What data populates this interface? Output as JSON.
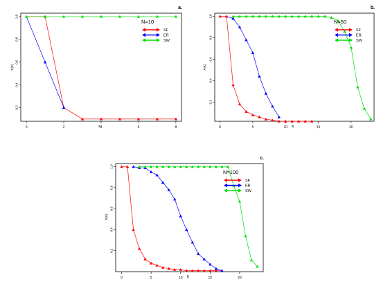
{
  "colors": {
    "SF": "#ff0000",
    "ER": "#0000ff",
    "SW": "#00dd00"
  },
  "chart_data": [
    {
      "type": "line",
      "panel_label": "a.",
      "annotation": "N=10",
      "xlabel": "K",
      "ylabel": "P(K)",
      "xlim": [
        -0.3,
        8.3
      ],
      "ylim": [
        0.08,
        1.03
      ],
      "xticks": [
        0,
        2,
        4,
        6,
        8
      ],
      "yticks": [
        0.2,
        0.4,
        0.6,
        0.8,
        1.0
      ],
      "ytick_labels": [
        "0.2",
        "0.4",
        "0.6",
        "0.8",
        "1.0"
      ],
      "legend": [
        "SF",
        "ER",
        "SW"
      ],
      "legend_position": "top-right",
      "series": [
        {
          "name": "SF",
          "color_key": "SF",
          "x": [
            1,
            2,
            3,
            4,
            5,
            6,
            7,
            8
          ],
          "y": [
            1.0,
            0.2,
            0.1,
            0.1,
            0.1,
            0.1,
            0.1,
            0.1
          ],
          "lines_from_x": 0,
          "lines_y0": 1.0
        },
        {
          "name": "ER",
          "color_key": "ER",
          "x": [
            1,
            2
          ],
          "y": [
            0.6,
            0.2
          ],
          "lines_from_x": 0,
          "lines_y0": 1.0
        },
        {
          "name": "SW",
          "color_key": "SW",
          "x": [
            0,
            1,
            2,
            3,
            4,
            5,
            6,
            7,
            8
          ],
          "y": [
            1.0,
            1.0,
            1.0,
            1.0,
            1.0,
            1.0,
            1.0,
            1.0,
            1.0
          ]
        }
      ]
    },
    {
      "type": "line",
      "panel_label": "b.",
      "annotation": "N=50",
      "xlabel": "K",
      "ylabel": "P(K)",
      "xlim": [
        -0.8,
        23.5
      ],
      "ylim": [
        0.02,
        1.03
      ],
      "xticks": [
        0,
        5,
        10,
        15,
        20
      ],
      "yticks": [
        0.2,
        0.4,
        0.6,
        0.8,
        1.0
      ],
      "ytick_labels": [
        "0.2",
        "0.4",
        "0.6",
        "0.8",
        "1.0"
      ],
      "legend": [
        "SF",
        "ER",
        "SW"
      ],
      "legend_position": "top-right",
      "series": [
        {
          "name": "SF",
          "color_key": "SF",
          "x": [
            0,
            1,
            2,
            3,
            4,
            5,
            6,
            7,
            8,
            9,
            10,
            11,
            12,
            13,
            14
          ],
          "y": [
            1.0,
            1.0,
            0.36,
            0.18,
            0.11,
            0.08,
            0.06,
            0.04,
            0.03,
            0.02,
            0.02,
            0.02,
            0.02,
            0.02,
            0.02
          ]
        },
        {
          "name": "ER",
          "color_key": "ER",
          "x": [
            2,
            3,
            4,
            5,
            6,
            7,
            8,
            9
          ],
          "y": [
            0.98,
            0.9,
            0.78,
            0.66,
            0.44,
            0.28,
            0.16,
            0.06
          ],
          "lines_from_x": 1,
          "lines_y0": 1.0
        },
        {
          "name": "SW",
          "color_key": "SW",
          "x": [
            2,
            3,
            4,
            5,
            6,
            7,
            8,
            9,
            10,
            11,
            12,
            13,
            14,
            15,
            16,
            17,
            18,
            19,
            20,
            21,
            22,
            23
          ],
          "y": [
            1.0,
            1.0,
            1.0,
            1.0,
            1.0,
            1.0,
            1.0,
            1.0,
            1.0,
            1.0,
            1.0,
            1.0,
            1.0,
            1.0,
            1.0,
            0.99,
            0.96,
            0.86,
            0.71,
            0.34,
            0.14,
            0.04
          ]
        }
      ]
    },
    {
      "type": "line",
      "panel_label": "c.",
      "annotation": "N=100",
      "xlabel": "K",
      "ylabel": "P(K)",
      "xlim": [
        -1.0,
        24.0
      ],
      "ylim": [
        0.0,
        1.03
      ],
      "xticks": [
        0,
        5,
        10,
        15,
        20
      ],
      "yticks": [
        0.2,
        0.4,
        0.6,
        0.8,
        1.0
      ],
      "ytick_labels": [
        "0.2",
        "0.4",
        "0.6",
        "0.8",
        "1.0"
      ],
      "legend": [
        "SF",
        "ER",
        "SW"
      ],
      "legend_position": "top-right",
      "series": [
        {
          "name": "SF",
          "color_key": "SF",
          "x": [
            0,
            1,
            2,
            3,
            4,
            5,
            6,
            7,
            8,
            9,
            10,
            11,
            12,
            13,
            14,
            15,
            16,
            17
          ],
          "y": [
            1.0,
            1.0,
            0.4,
            0.22,
            0.12,
            0.08,
            0.06,
            0.04,
            0.03,
            0.02,
            0.02,
            0.01,
            0.01,
            0.01,
            0.01,
            0.01,
            0.01,
            0.01
          ]
        },
        {
          "name": "ER",
          "color_key": "ER",
          "x": [
            2,
            3,
            4,
            5,
            6,
            7,
            8,
            9,
            10,
            11,
            12,
            13,
            14,
            15,
            16,
            17
          ],
          "y": [
            1.0,
            0.99,
            0.99,
            0.95,
            0.92,
            0.85,
            0.78,
            0.69,
            0.53,
            0.4,
            0.28,
            0.17,
            0.12,
            0.07,
            0.03,
            0.01
          ]
        },
        {
          "name": "SW",
          "color_key": "SW",
          "x": [
            3,
            4,
            5,
            6,
            7,
            8,
            9,
            10,
            11,
            12,
            13,
            14,
            15,
            16,
            17,
            18,
            19,
            20,
            21,
            22,
            23
          ],
          "y": [
            1.0,
            1.0,
            1.0,
            1.0,
            1.0,
            1.0,
            1.0,
            1.0,
            1.0,
            1.0,
            1.0,
            1.0,
            1.0,
            1.0,
            1.0,
            1.0,
            0.82,
            0.67,
            0.34,
            0.11,
            0.05
          ]
        }
      ]
    }
  ]
}
